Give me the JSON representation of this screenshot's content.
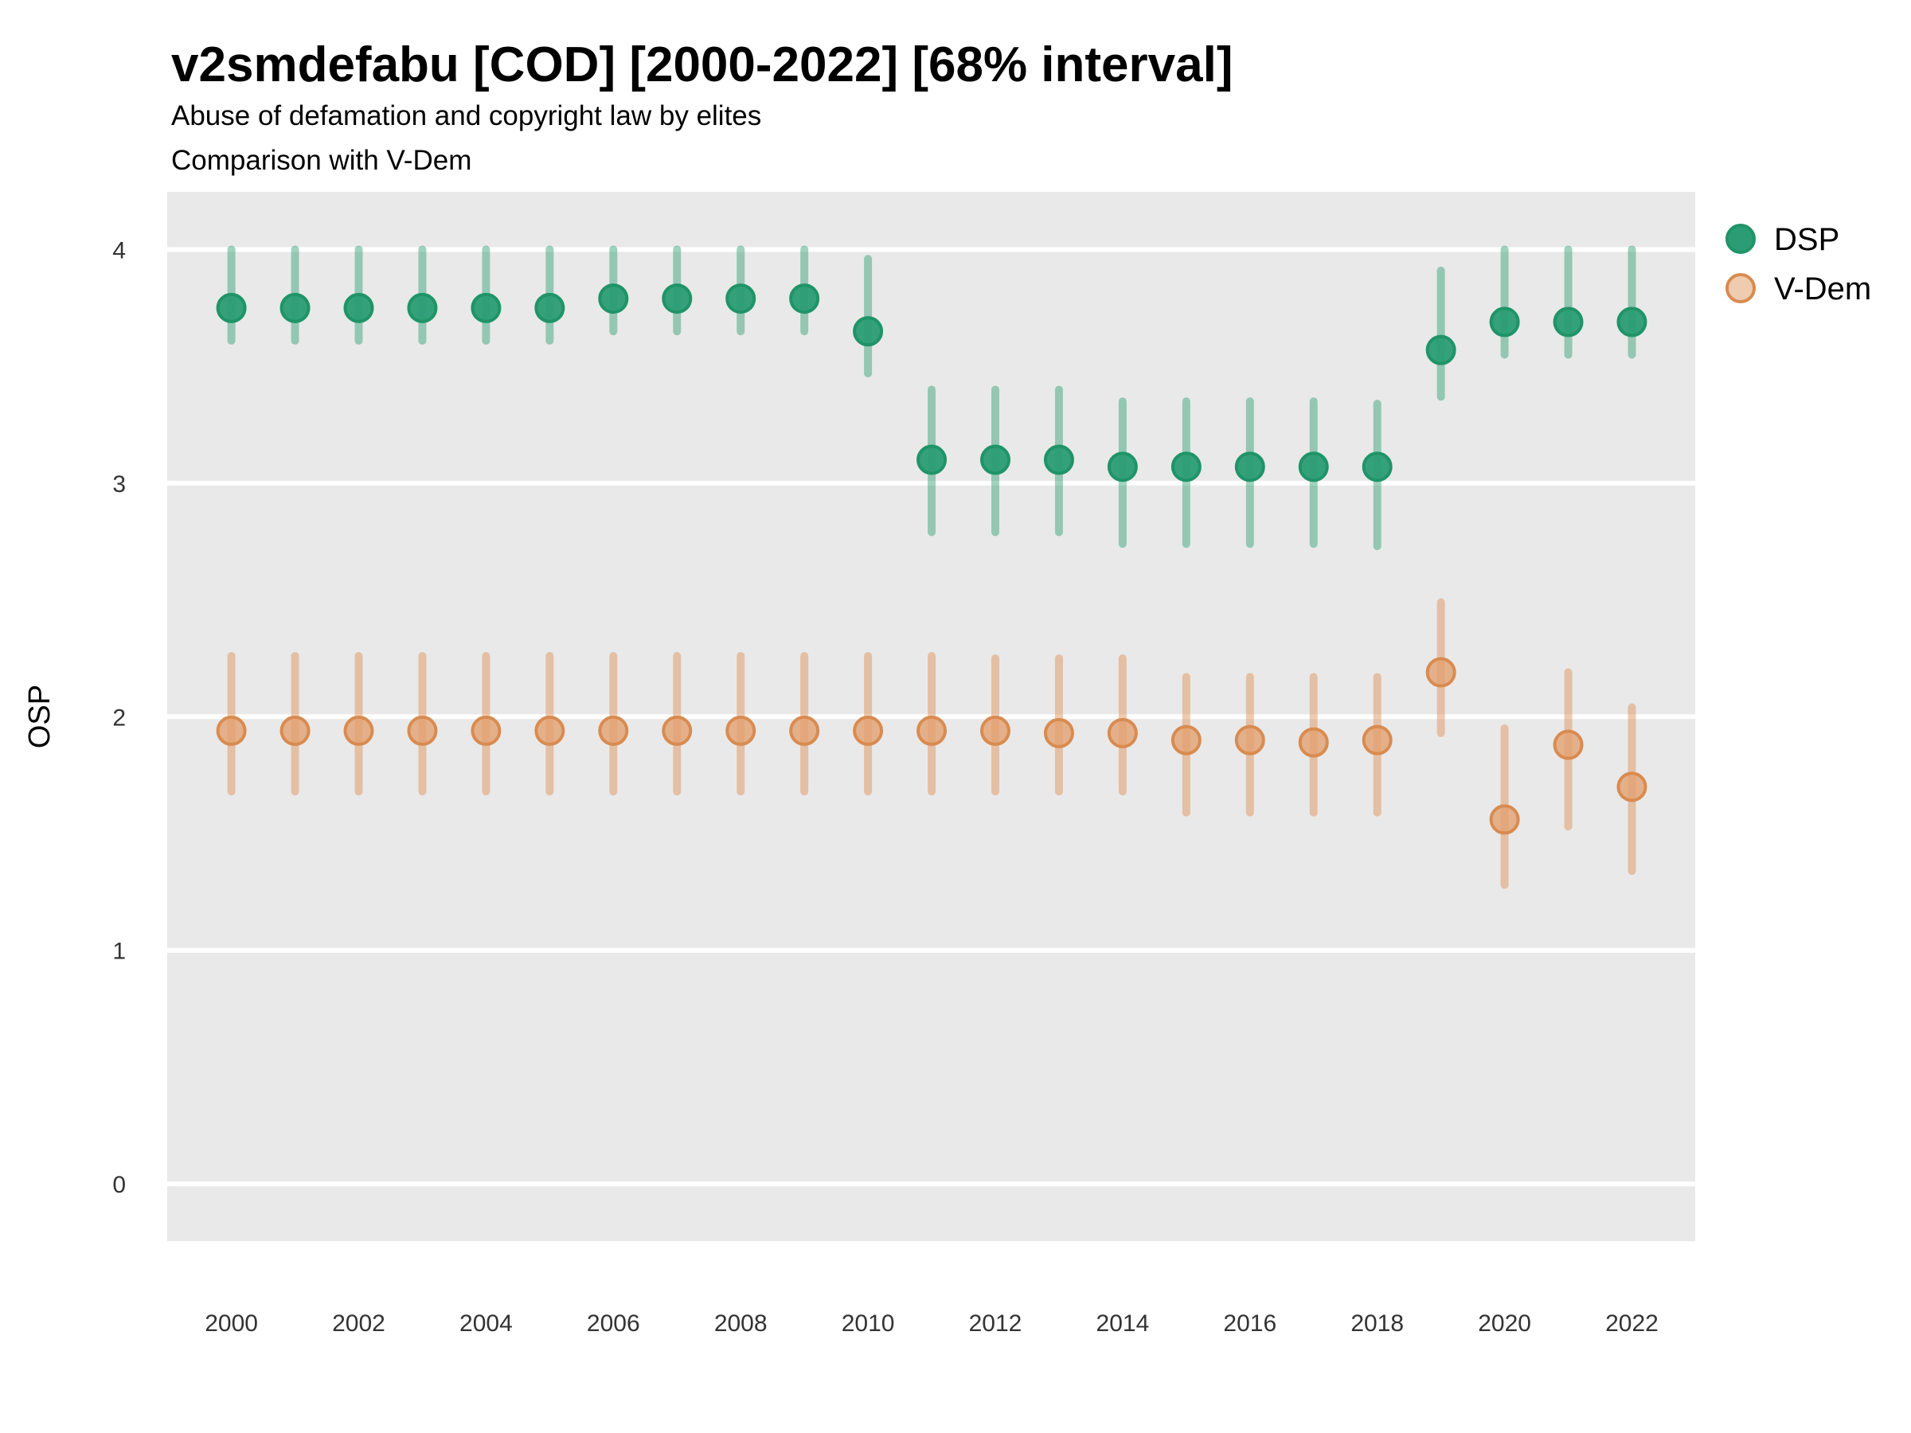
{
  "title": "v2smdefabu [COD] [2000-2022] [68% interval]",
  "subtitle_line1": "Abuse of defamation and copyright law by elites",
  "subtitle_line2": "Comparison with V-Dem",
  "y_axis_label": "OSP",
  "legend": {
    "position": "right",
    "items": [
      {
        "label": "DSP",
        "color": "#2a9d74"
      },
      {
        "label": "V-Dem",
        "color": "#e2a170"
      }
    ]
  },
  "style": {
    "panel_background": "#e9e9e9",
    "gridline_color": "#ffffff",
    "page_background": "#ffffff",
    "tick_text_color": "#333333"
  },
  "chart_data": {
    "type": "scatter",
    "title": "v2smdefabu [COD] [2000-2022] [68% interval]",
    "subtitle": [
      "Abuse of defamation and copyright law by elites",
      "Comparison with V-Dem"
    ],
    "xlabel": "",
    "ylabel": "OSP",
    "interval": "68%",
    "grid": "horizontal-major-only",
    "legend_position": "top-right-outside",
    "ylim": [
      -0.245,
      4.247
    ],
    "yticks": [
      0,
      1,
      2,
      3,
      4
    ],
    "xticks": [
      2000,
      2002,
      2004,
      2006,
      2008,
      2010,
      2012,
      2014,
      2016,
      2018,
      2020,
      2022
    ],
    "x": [
      2000,
      2001,
      2002,
      2003,
      2004,
      2005,
      2006,
      2007,
      2008,
      2009,
      2010,
      2011,
      2012,
      2013,
      2014,
      2015,
      2016,
      2017,
      2018,
      2019,
      2020,
      2021,
      2022
    ],
    "series": [
      {
        "name": "DSP",
        "color": "#2a9d74",
        "stroke": "#1f9468",
        "bar_color": "#2a9d74",
        "fill_opacity": 0.95,
        "bar_opacity": 0.45,
        "values": [
          3.75,
          3.75,
          3.75,
          3.75,
          3.75,
          3.75,
          3.79,
          3.79,
          3.79,
          3.79,
          3.65,
          3.1,
          3.1,
          3.1,
          3.07,
          3.07,
          3.07,
          3.07,
          3.07,
          3.57,
          3.69,
          3.69,
          3.69
        ],
        "lower": [
          3.61,
          3.61,
          3.61,
          3.61,
          3.61,
          3.61,
          3.65,
          3.65,
          3.65,
          3.65,
          3.47,
          2.79,
          2.79,
          2.79,
          2.74,
          2.74,
          2.74,
          2.74,
          2.73,
          3.37,
          3.55,
          3.55,
          3.55
        ],
        "upper": [
          4.0,
          4.0,
          4.0,
          4.0,
          4.0,
          4.0,
          4.0,
          4.0,
          4.0,
          4.0,
          3.96,
          3.4,
          3.4,
          3.4,
          3.35,
          3.35,
          3.35,
          3.35,
          3.34,
          3.91,
          4.0,
          4.0,
          4.0
        ]
      },
      {
        "name": "V-Dem",
        "color": "#e2a170",
        "stroke": "#d98b50",
        "bar_color": "#dd8c50",
        "fill_opacity": 0.8,
        "bar_opacity": 0.45,
        "values": [
          1.94,
          1.94,
          1.94,
          1.94,
          1.94,
          1.94,
          1.94,
          1.94,
          1.94,
          1.94,
          1.94,
          1.94,
          1.94,
          1.93,
          1.93,
          1.9,
          1.9,
          1.89,
          1.9,
          2.19,
          1.56,
          1.88,
          1.7
        ],
        "lower": [
          1.68,
          1.68,
          1.68,
          1.68,
          1.68,
          1.68,
          1.68,
          1.68,
          1.68,
          1.68,
          1.68,
          1.68,
          1.68,
          1.68,
          1.68,
          1.59,
          1.59,
          1.59,
          1.59,
          1.93,
          1.28,
          1.53,
          1.34
        ],
        "upper": [
          2.26,
          2.26,
          2.26,
          2.26,
          2.26,
          2.26,
          2.26,
          2.26,
          2.26,
          2.26,
          2.26,
          2.26,
          2.25,
          2.25,
          2.25,
          2.17,
          2.17,
          2.17,
          2.17,
          2.49,
          1.95,
          2.19,
          2.04
        ]
      }
    ]
  }
}
